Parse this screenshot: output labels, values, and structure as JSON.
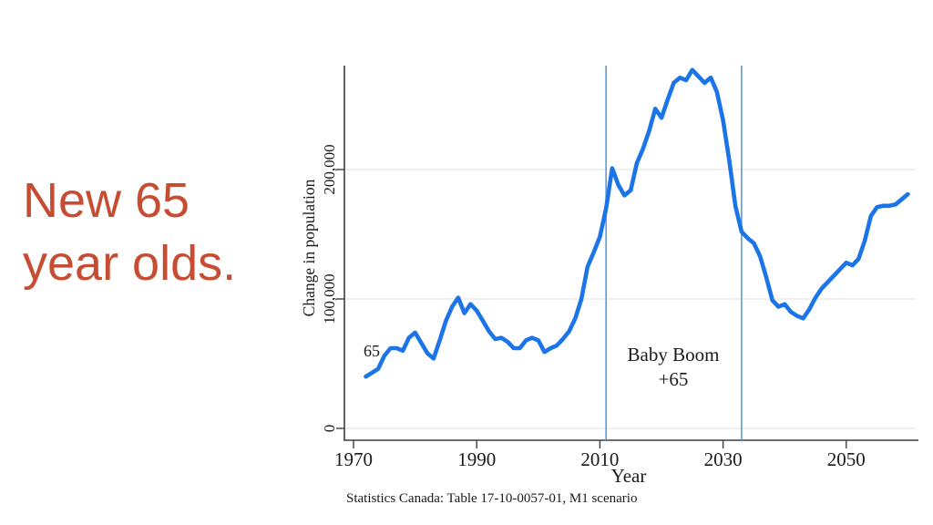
{
  "slide": {
    "title": "New 65 year olds.",
    "title_lines": [
      "New 65",
      "year olds."
    ],
    "title_color": "#c64c32"
  },
  "chart_data": {
    "type": "line",
    "title": "",
    "xlabel": "Year",
    "ylabel": "Change in population",
    "source_note": "Statistics Canada: Table 17-10-0057-01, M1 scenario",
    "x_ticks": [
      1970,
      1990,
      2010,
      2030,
      2050
    ],
    "y_ticks": [
      {
        "value": 0,
        "label": "0"
      },
      {
        "value": 100000,
        "label": "100,000"
      },
      {
        "value": 200000,
        "label": "200,000"
      }
    ],
    "xlim": [
      1968.5,
      2061.5
    ],
    "ylim": [
      0,
      290000
    ],
    "grid": "horizontal",
    "legend": "none",
    "line_color": "#1b75e8",
    "annotation_color": "#3273d2",
    "reference_lines": {
      "color": "#5b9bd5",
      "years": [
        2011,
        2033
      ],
      "meaning": "Baby Boom +65 period"
    },
    "annotations": [
      {
        "id": "baby-boom-line1",
        "text": "Baby Boom"
      },
      {
        "id": "baby-boom-line2",
        "text": "+65"
      },
      {
        "id": "series-start-label",
        "text": "65"
      }
    ],
    "series": [
      {
        "name": "New 65 year olds",
        "points": [
          [
            1972,
            40000
          ],
          [
            1973,
            43000
          ],
          [
            1974,
            46000
          ],
          [
            1975,
            56000
          ],
          [
            1976,
            62000
          ],
          [
            1977,
            62000
          ],
          [
            1978,
            60000
          ],
          [
            1979,
            70000
          ],
          [
            1980,
            74000
          ],
          [
            1981,
            66000
          ],
          [
            1982,
            58000
          ],
          [
            1983,
            54000
          ],
          [
            1984,
            68000
          ],
          [
            1985,
            83000
          ],
          [
            1986,
            94000
          ],
          [
            1987,
            101000
          ],
          [
            1988,
            89000
          ],
          [
            1989,
            96000
          ],
          [
            1990,
            91000
          ],
          [
            1991,
            83000
          ],
          [
            1992,
            75000
          ],
          [
            1993,
            69000
          ],
          [
            1994,
            70000
          ],
          [
            1995,
            67000
          ],
          [
            1996,
            62000
          ],
          [
            1997,
            62000
          ],
          [
            1998,
            68000
          ],
          [
            1999,
            70000
          ],
          [
            2000,
            68000
          ],
          [
            2001,
            59000
          ],
          [
            2002,
            62000
          ],
          [
            2003,
            64000
          ],
          [
            2004,
            69000
          ],
          [
            2005,
            75000
          ],
          [
            2006,
            85000
          ],
          [
            2007,
            100000
          ],
          [
            2008,
            125000
          ],
          [
            2009,
            136000
          ],
          [
            2010,
            148000
          ],
          [
            2011,
            170000
          ],
          [
            2012,
            201000
          ],
          [
            2013,
            188000
          ],
          [
            2014,
            180000
          ],
          [
            2015,
            184000
          ],
          [
            2016,
            205000
          ],
          [
            2017,
            216000
          ],
          [
            2018,
            230000
          ],
          [
            2019,
            247000
          ],
          [
            2020,
            240000
          ],
          [
            2021,
            254000
          ],
          [
            2022,
            267000
          ],
          [
            2023,
            271000
          ],
          [
            2024,
            269000
          ],
          [
            2025,
            277000
          ],
          [
            2026,
            272000
          ],
          [
            2027,
            267000
          ],
          [
            2028,
            271000
          ],
          [
            2029,
            260000
          ],
          [
            2030,
            238000
          ],
          [
            2031,
            207000
          ],
          [
            2032,
            172000
          ],
          [
            2033,
            152000
          ],
          [
            2034,
            147000
          ],
          [
            2035,
            143000
          ],
          [
            2036,
            133000
          ],
          [
            2037,
            117000
          ],
          [
            2038,
            99000
          ],
          [
            2039,
            94000
          ],
          [
            2040,
            96000
          ],
          [
            2041,
            90000
          ],
          [
            2042,
            87000
          ],
          [
            2043,
            85000
          ],
          [
            2044,
            92000
          ],
          [
            2045,
            101000
          ],
          [
            2046,
            108000
          ],
          [
            2047,
            113000
          ],
          [
            2048,
            118000
          ],
          [
            2049,
            123000
          ],
          [
            2050,
            128000
          ],
          [
            2051,
            126000
          ],
          [
            2052,
            131000
          ],
          [
            2053,
            145000
          ],
          [
            2054,
            164000
          ],
          [
            2055,
            171000
          ],
          [
            2056,
            172000
          ],
          [
            2057,
            172000
          ],
          [
            2058,
            173000
          ],
          [
            2059,
            177000
          ],
          [
            2060,
            181000
          ]
        ]
      }
    ]
  }
}
